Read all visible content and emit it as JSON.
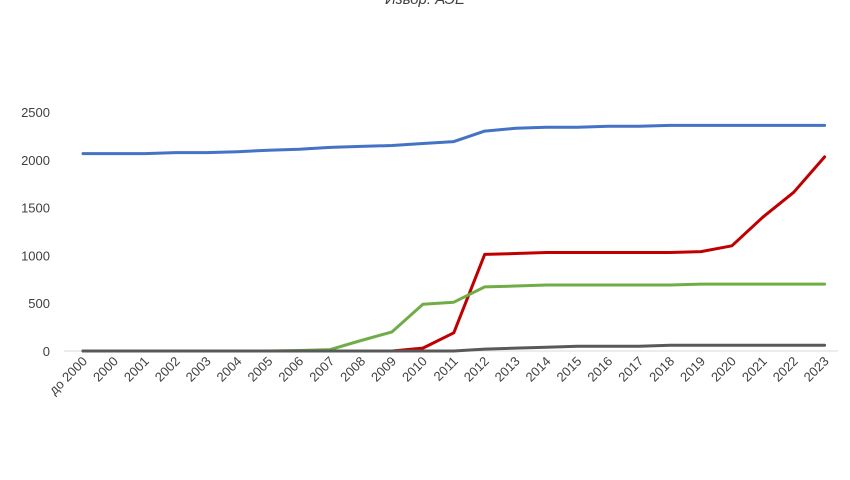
{
  "source_note": "Извор: АЭЕ",
  "chart_data": {
    "type": "line",
    "categories": [
      "до 2000",
      "2000",
      "2001",
      "2002",
      "2003",
      "2004",
      "2005",
      "2006",
      "2007",
      "2008",
      "2009",
      "2010",
      "2011",
      "2012",
      "2013",
      "2014",
      "2015",
      "2016",
      "2017",
      "2018",
      "2019",
      "2020",
      "2021",
      "2022",
      "2023"
    ],
    "y_ticks": [
      "0",
      "500",
      "1000",
      "1500",
      "2000",
      "2500"
    ],
    "ylim": [
      0,
      2500
    ],
    "grid": false,
    "legend": "none",
    "series": [
      {
        "color": "#4472C4",
        "values": [
          2065,
          2065,
          2065,
          2075,
          2075,
          2085,
          2100,
          2110,
          2130,
          2140,
          2150,
          2170,
          2190,
          2300,
          2330,
          2340,
          2340,
          2350,
          2350,
          2360,
          2360,
          2360,
          2360,
          2360,
          2360
        ]
      },
      {
        "color": "#C00000",
        "values": [
          0,
          0,
          0,
          0,
          0,
          0,
          0,
          0,
          0,
          0,
          0,
          30,
          190,
          1010,
          1020,
          1030,
          1030,
          1030,
          1030,
          1030,
          1040,
          1100,
          1400,
          1660,
          2030
        ]
      },
      {
        "color": "#70AD47",
        "values": [
          0,
          0,
          0,
          0,
          0,
          0,
          0,
          5,
          15,
          110,
          200,
          490,
          510,
          670,
          680,
          690,
          690,
          690,
          690,
          690,
          700,
          700,
          700,
          700,
          700
        ]
      },
      {
        "color": "#595959",
        "values": [
          0,
          0,
          0,
          0,
          0,
          0,
          0,
          0,
          0,
          0,
          0,
          0,
          0,
          20,
          30,
          40,
          50,
          50,
          50,
          60,
          60,
          60,
          60,
          60,
          60
        ]
      }
    ]
  }
}
